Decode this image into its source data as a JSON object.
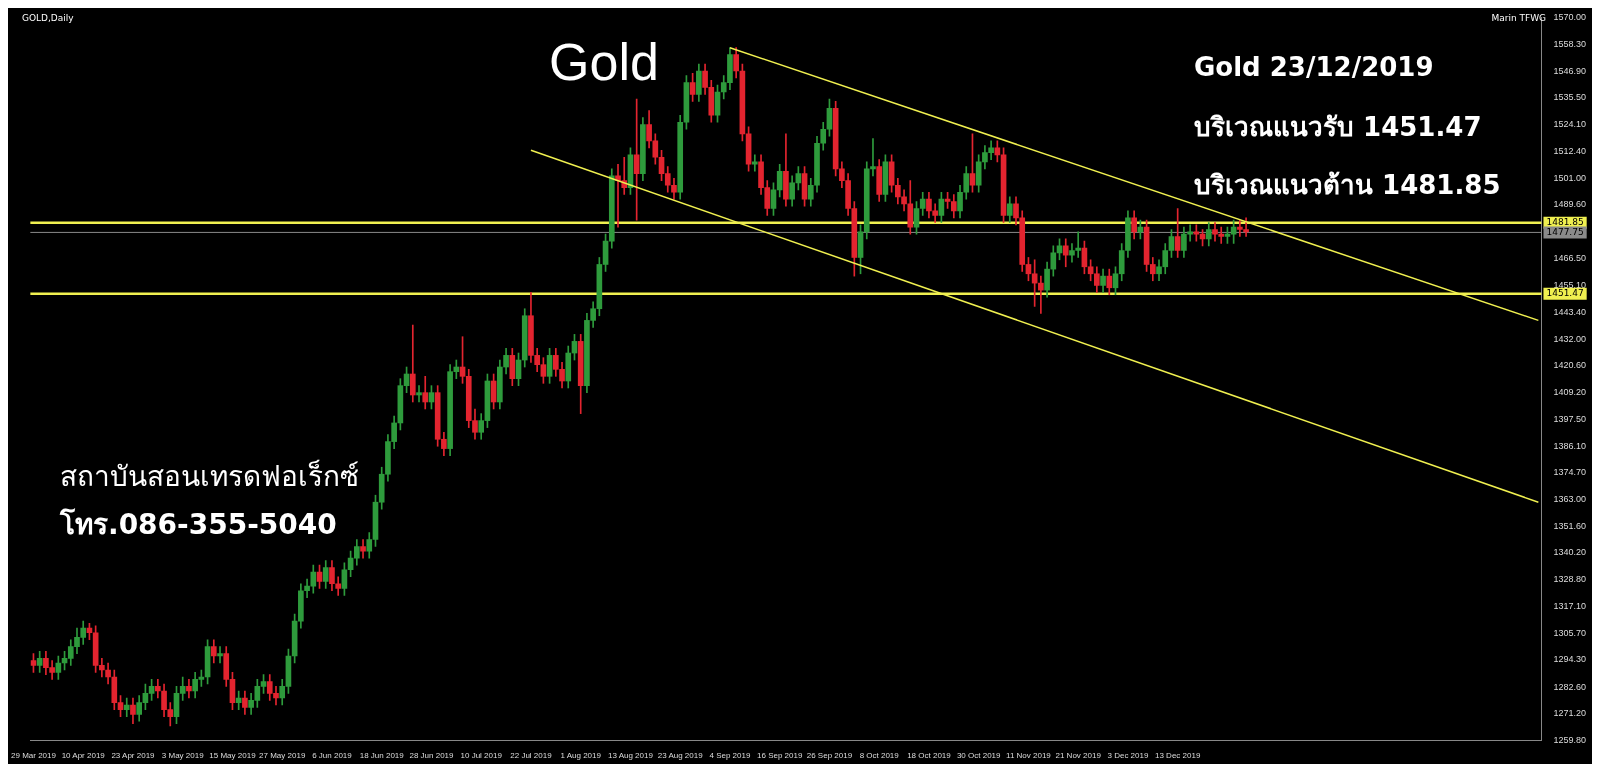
{
  "chart_data": {
    "type": "candlestick",
    "title": "Gold",
    "subtitle": "GOLD,Daily",
    "categories": [
      "29 Mar 2019",
      null,
      null,
      null,
      null,
      null,
      null,
      null,
      "10 Apr 2019",
      null,
      null,
      null,
      null,
      null,
      null,
      null,
      "23 Apr 2019",
      null,
      null,
      null,
      null,
      null,
      null,
      null,
      "3 May 2019",
      null,
      null,
      null,
      null,
      null,
      null,
      null,
      "15 May 2019",
      null,
      null,
      null,
      null,
      null,
      null,
      null,
      "27 May 2019",
      null,
      null,
      null,
      null,
      null,
      null,
      null,
      "6 Jun 2019",
      null,
      null,
      null,
      null,
      null,
      null,
      null,
      "18 Jun 2019",
      null,
      null,
      null,
      null,
      null,
      null,
      null,
      "28 Jun 2019",
      null,
      null,
      null,
      null,
      null,
      null,
      null,
      "10 Jul 2019",
      null,
      null,
      null,
      null,
      null,
      null,
      null,
      "22 Jul 2019",
      null,
      null,
      null,
      null,
      null,
      null,
      null,
      "1 Aug 2019",
      null,
      null,
      null,
      null,
      null,
      null,
      null,
      "13 Aug 2019",
      null,
      null,
      null,
      null,
      null,
      null,
      null,
      "23 Aug 2019",
      null,
      null,
      null,
      null,
      null,
      null,
      null,
      "4 Sep 2019",
      null,
      null,
      null,
      null,
      null,
      null,
      null,
      "16 Sep 2019",
      null,
      null,
      null,
      null,
      null,
      null,
      null,
      "26 Sep 2019",
      null,
      null,
      null,
      null,
      null,
      null,
      null,
      "8 Oct 2019",
      null,
      null,
      null,
      null,
      null,
      null,
      null,
      "18 Oct 2019",
      null,
      null,
      null,
      null,
      null,
      null,
      null,
      "30 Oct 2019",
      null,
      null,
      null,
      null,
      null,
      null,
      null,
      "11 Nov 2019",
      null,
      null,
      null,
      null,
      null,
      null,
      null,
      "21 Nov 2019",
      null,
      null,
      null,
      null,
      null,
      null,
      null,
      "3 Dec 2019",
      null,
      null,
      null,
      null,
      null,
      null,
      null,
      "13 Dec 2019",
      null,
      null,
      null,
      null,
      null,
      null,
      null,
      null,
      null,
      null,
      null,
      null,
      null,
      null,
      null,
      null,
      null,
      null,
      null,
      null,
      null,
      null,
      null,
      null,
      null,
      null,
      null,
      null,
      null,
      null,
      null,
      null,
      null,
      null,
      null,
      null,
      null,
      null,
      null,
      null,
      null,
      null,
      null,
      null,
      null,
      null,
      null,
      null,
      null,
      null,
      null,
      null,
      null,
      null,
      null,
      null,
      null,
      null
    ],
    "ohlc": [
      [
        1294,
        1297,
        1289,
        1292
      ],
      [
        1292,
        1298,
        1289,
        1295
      ],
      [
        1295,
        1298,
        1288,
        1291
      ],
      [
        1291,
        1294,
        1286,
        1289
      ],
      [
        1289,
        1296,
        1286,
        1293
      ],
      [
        1293,
        1298,
        1290,
        1295
      ],
      [
        1295,
        1303,
        1292,
        1300
      ],
      [
        1300,
        1308,
        1297,
        1304
      ],
      [
        1304,
        1311,
        1301,
        1308
      ],
      [
        1308,
        1310,
        1303,
        1306
      ],
      [
        1306,
        1309,
        1289,
        1292
      ],
      [
        1292,
        1295,
        1287,
        1290
      ],
      [
        1290,
        1293,
        1284,
        1287
      ],
      [
        1287,
        1290,
        1273,
        1276
      ],
      [
        1276,
        1279,
        1270,
        1273
      ],
      [
        1273,
        1278,
        1270,
        1275
      ],
      [
        1275,
        1278,
        1267,
        1271
      ],
      [
        1271,
        1279,
        1268,
        1276
      ],
      [
        1276,
        1284,
        1273,
        1280
      ],
      [
        1280,
        1286,
        1277,
        1283
      ],
      [
        1283,
        1286,
        1278,
        1281
      ],
      [
        1281,
        1284,
        1270,
        1273
      ],
      [
        1273,
        1276,
        1266,
        1270
      ],
      [
        1270,
        1283,
        1267,
        1280
      ],
      [
        1280,
        1287,
        1277,
        1283
      ],
      [
        1283,
        1286,
        1278,
        1281
      ],
      [
        1281,
        1289,
        1278,
        1286
      ],
      [
        1286,
        1290,
        1283,
        1287
      ],
      [
        1287,
        1303,
        1284,
        1300
      ],
      [
        1300,
        1303,
        1293,
        1296
      ],
      [
        1296,
        1300,
        1293,
        1297
      ],
      [
        1297,
        1300,
        1283,
        1286
      ],
      [
        1286,
        1289,
        1273,
        1276
      ],
      [
        1276,
        1281,
        1273,
        1278
      ],
      [
        1278,
        1281,
        1271,
        1274
      ],
      [
        1274,
        1280,
        1271,
        1277
      ],
      [
        1277,
        1286,
        1274,
        1283
      ],
      [
        1283,
        1288,
        1280,
        1285
      ],
      [
        1285,
        1288,
        1277,
        1280
      ],
      [
        1280,
        1283,
        1275,
        1278
      ],
      [
        1278,
        1286,
        1275,
        1283
      ],
      [
        1283,
        1299,
        1280,
        1296
      ],
      [
        1296,
        1314,
        1293,
        1311
      ],
      [
        1311,
        1327,
        1308,
        1324
      ],
      [
        1324,
        1329,
        1321,
        1326
      ],
      [
        1326,
        1335,
        1323,
        1332
      ],
      [
        1332,
        1335,
        1325,
        1328
      ],
      [
        1328,
        1337,
        1325,
        1334
      ],
      [
        1334,
        1337,
        1324,
        1327
      ],
      [
        1327,
        1330,
        1322,
        1325
      ],
      [
        1325,
        1336,
        1322,
        1333
      ],
      [
        1333,
        1341,
        1330,
        1338
      ],
      [
        1338,
        1346,
        1335,
        1343
      ],
      [
        1343,
        1346,
        1338,
        1341
      ],
      [
        1341,
        1349,
        1338,
        1346
      ],
      [
        1346,
        1365,
        1343,
        1362
      ],
      [
        1362,
        1377,
        1359,
        1374
      ],
      [
        1374,
        1391,
        1371,
        1388
      ],
      [
        1388,
        1399,
        1385,
        1396
      ],
      [
        1396,
        1415,
        1393,
        1412
      ],
      [
        1412,
        1420,
        1409,
        1417
      ],
      [
        1417,
        1438,
        1405,
        1408
      ],
      [
        1408,
        1412,
        1405,
        1409
      ],
      [
        1409,
        1416,
        1402,
        1405
      ],
      [
        1405,
        1412,
        1402,
        1409
      ],
      [
        1409,
        1412,
        1386,
        1389
      ],
      [
        1389,
        1392,
        1382,
        1385
      ],
      [
        1385,
        1421,
        1382,
        1418
      ],
      [
        1418,
        1423,
        1415,
        1420
      ],
      [
        1420,
        1433,
        1413,
        1416
      ],
      [
        1416,
        1419,
        1394,
        1397
      ],
      [
        1397,
        1402,
        1389,
        1392
      ],
      [
        1392,
        1400,
        1389,
        1397
      ],
      [
        1397,
        1417,
        1394,
        1414
      ],
      [
        1414,
        1417,
        1402,
        1405
      ],
      [
        1405,
        1423,
        1402,
        1420
      ],
      [
        1420,
        1428,
        1417,
        1425
      ],
      [
        1425,
        1428,
        1412,
        1415
      ],
      [
        1415,
        1426,
        1412,
        1423
      ],
      [
        1423,
        1445,
        1420,
        1442
      ],
      [
        1442,
        1452,
        1422,
        1425
      ],
      [
        1425,
        1428,
        1418,
        1421
      ],
      [
        1421,
        1424,
        1413,
        1416
      ],
      [
        1416,
        1428,
        1413,
        1425
      ],
      [
        1425,
        1428,
        1416,
        1419
      ],
      [
        1419,
        1422,
        1411,
        1414
      ],
      [
        1414,
        1429,
        1411,
        1426
      ],
      [
        1426,
        1434,
        1423,
        1431
      ],
      [
        1431,
        1434,
        1400,
        1412
      ],
      [
        1412,
        1443,
        1409,
        1440
      ],
      [
        1440,
        1448,
        1437,
        1445
      ],
      [
        1445,
        1467,
        1442,
        1464
      ],
      [
        1464,
        1477,
        1461,
        1474
      ],
      [
        1474,
        1505,
        1471,
        1502
      ],
      [
        1502,
        1507,
        1480,
        1500
      ],
      [
        1500,
        1510,
        1494,
        1497
      ],
      [
        1497,
        1514,
        1494,
        1511
      ],
      [
        1511,
        1535,
        1483,
        1503
      ],
      [
        1503,
        1527,
        1500,
        1524
      ],
      [
        1524,
        1530,
        1514,
        1517
      ],
      [
        1517,
        1520,
        1507,
        1510
      ],
      [
        1510,
        1513,
        1500,
        1503
      ],
      [
        1503,
        1506,
        1495,
        1498
      ],
      [
        1498,
        1501,
        1492,
        1495
      ],
      [
        1495,
        1528,
        1492,
        1525
      ],
      [
        1525,
        1545,
        1522,
        1542
      ],
      [
        1542,
        1546,
        1534,
        1537
      ],
      [
        1537,
        1550,
        1534,
        1547
      ],
      [
        1547,
        1550,
        1537,
        1540
      ],
      [
        1540,
        1543,
        1525,
        1528
      ],
      [
        1528,
        1541,
        1525,
        1538
      ],
      [
        1538,
        1545,
        1535,
        1542
      ],
      [
        1542,
        1557,
        1539,
        1554
      ],
      [
        1554,
        1557,
        1544,
        1547
      ],
      [
        1547,
        1550,
        1517,
        1520
      ],
      [
        1520,
        1523,
        1504,
        1507
      ],
      [
        1507,
        1511,
        1504,
        1508
      ],
      [
        1508,
        1511,
        1494,
        1497
      ],
      [
        1497,
        1500,
        1485,
        1488
      ],
      [
        1488,
        1499,
        1485,
        1496
      ],
      [
        1496,
        1507,
        1493,
        1504
      ],
      [
        1504,
        1520,
        1489,
        1492
      ],
      [
        1492,
        1502,
        1489,
        1499
      ],
      [
        1499,
        1506,
        1496,
        1503
      ],
      [
        1503,
        1506,
        1489,
        1492
      ],
      [
        1492,
        1501,
        1489,
        1498
      ],
      [
        1498,
        1519,
        1495,
        1516
      ],
      [
        1516,
        1525,
        1513,
        1522
      ],
      [
        1522,
        1535,
        1519,
        1531
      ],
      [
        1531,
        1534,
        1502,
        1505
      ],
      [
        1505,
        1508,
        1497,
        1500
      ],
      [
        1500,
        1503,
        1485,
        1488
      ],
      [
        1488,
        1491,
        1459,
        1467
      ],
      [
        1467,
        1481,
        1460,
        1478
      ],
      [
        1478,
        1508,
        1475,
        1505
      ],
      [
        1505,
        1518,
        1502,
        1506
      ],
      [
        1506,
        1509,
        1491,
        1494
      ],
      [
        1494,
        1511,
        1491,
        1508
      ],
      [
        1508,
        1511,
        1495,
        1498
      ],
      [
        1498,
        1501,
        1490,
        1493
      ],
      [
        1493,
        1496,
        1487,
        1490
      ],
      [
        1490,
        1500,
        1477,
        1480
      ],
      [
        1480,
        1491,
        1477,
        1488
      ],
      [
        1488,
        1495,
        1485,
        1492
      ],
      [
        1492,
        1495,
        1484,
        1487
      ],
      [
        1487,
        1490,
        1482,
        1485
      ],
      [
        1485,
        1495,
        1482,
        1492
      ],
      [
        1492,
        1495,
        1488,
        1491
      ],
      [
        1491,
        1494,
        1484,
        1487
      ],
      [
        1487,
        1498,
        1484,
        1495
      ],
      [
        1495,
        1506,
        1492,
        1503
      ],
      [
        1503,
        1520,
        1495,
        1498
      ],
      [
        1498,
        1511,
        1495,
        1508
      ],
      [
        1508,
        1515,
        1505,
        1512
      ],
      [
        1512,
        1517,
        1509,
        1514
      ],
      [
        1514,
        1517,
        1508,
        1511
      ],
      [
        1511,
        1514,
        1482,
        1485
      ],
      [
        1485,
        1493,
        1482,
        1490
      ],
      [
        1490,
        1493,
        1481,
        1484
      ],
      [
        1484,
        1487,
        1461,
        1464
      ],
      [
        1464,
        1467,
        1457,
        1460
      ],
      [
        1460,
        1466,
        1446,
        1456
      ],
      [
        1456,
        1459,
        1443,
        1453
      ],
      [
        1453,
        1465,
        1450,
        1462
      ],
      [
        1462,
        1472,
        1459,
        1469
      ],
      [
        1469,
        1475,
        1466,
        1472
      ],
      [
        1472,
        1475,
        1463,
        1468
      ],
      [
        1468,
        1473,
        1465,
        1470
      ],
      [
        1470,
        1478,
        1467,
        1471
      ],
      [
        1471,
        1474,
        1460,
        1463
      ],
      [
        1463,
        1466,
        1457,
        1460
      ],
      [
        1460,
        1463,
        1452,
        1455
      ],
      [
        1455,
        1462,
        1452,
        1459
      ],
      [
        1459,
        1462,
        1451,
        1454
      ],
      [
        1454,
        1463,
        1451,
        1460
      ],
      [
        1460,
        1473,
        1457,
        1470
      ],
      [
        1470,
        1487,
        1467,
        1484
      ],
      [
        1484,
        1487,
        1475,
        1478
      ],
      [
        1478,
        1483,
        1475,
        1480
      ],
      [
        1480,
        1483,
        1461,
        1464
      ],
      [
        1464,
        1467,
        1457,
        1460
      ],
      [
        1460,
        1466,
        1457,
        1463
      ],
      [
        1463,
        1473,
        1460,
        1470
      ],
      [
        1470,
        1479,
        1467,
        1476
      ],
      [
        1476,
        1488,
        1467,
        1470
      ],
      [
        1470,
        1480,
        1467,
        1477
      ],
      [
        1477,
        1481,
        1474,
        1478
      ],
      [
        1478,
        1481,
        1474,
        1477
      ],
      [
        1477,
        1479,
        1472,
        1475
      ],
      [
        1475,
        1482,
        1472,
        1479
      ],
      [
        1479,
        1482,
        1474,
        1477
      ],
      [
        1477,
        1480,
        1473,
        1476
      ],
      [
        1476,
        1480,
        1473,
        1477
      ],
      [
        1477,
        1483,
        1473,
        1480
      ],
      [
        1480,
        1483,
        1476,
        1479
      ],
      [
        1479,
        1484,
        1476,
        1478
      ],
      null,
      null,
      null,
      null,
      null,
      null,
      null,
      null,
      null,
      null,
      null,
      null,
      null,
      null,
      null,
      null,
      null,
      null,
      null,
      null,
      null,
      null,
      null,
      null,
      null,
      null,
      null,
      null,
      null,
      null,
      null,
      null,
      null,
      null,
      null,
      null,
      null,
      null,
      null,
      null,
      null,
      null,
      null,
      null,
      null,
      null,
      null
    ],
    "colors": [
      "#e3242f",
      "#2e9b3c",
      "#e3242f",
      "#e3242f",
      "#2e9b3c",
      "#2e9b3c",
      "#2e9b3c",
      "#2e9b3c",
      "#2e9b3c",
      "#e3242f",
      "#e3242f",
      "#e3242f",
      "#e3242f",
      "#e3242f",
      "#e3242f",
      "#2e9b3c",
      "#e3242f",
      "#2e9b3c",
      "#2e9b3c",
      "#2e9b3c",
      "#e3242f",
      "#e3242f",
      "#e3242f",
      "#2e9b3c",
      "#2e9b3c",
      "#e3242f",
      "#2e9b3c",
      "#2e9b3c",
      "#2e9b3c",
      "#e3242f",
      "#2e9b3c",
      "#e3242f",
      "#e3242f",
      "#2e9b3c",
      "#e3242f",
      "#2e9b3c",
      "#2e9b3c",
      "#2e9b3c",
      "#e3242f",
      "#e3242f",
      "#2e9b3c",
      "#2e9b3c",
      "#2e9b3c",
      "#2e9b3c",
      "#2e9b3c",
      "#2e9b3c",
      "#e3242f",
      "#2e9b3c",
      "#e3242f",
      "#e3242f",
      "#2e9b3c",
      "#2e9b3c",
      "#2e9b3c",
      "#e3242f",
      "#2e9b3c",
      "#2e9b3c",
      "#2e9b3c",
      "#2e9b3c",
      "#2e9b3c",
      "#2e9b3c",
      "#2e9b3c",
      "#e3242f",
      "#2e9b3c",
      "#e3242f",
      "#2e9b3c",
      "#e3242f",
      "#e3242f",
      "#2e9b3c",
      "#2e9b3c",
      "#e3242f",
      "#e3242f",
      "#e3242f",
      "#2e9b3c",
      "#2e9b3c",
      "#e3242f",
      "#2e9b3c",
      "#2e9b3c",
      "#e3242f",
      "#2e9b3c",
      "#2e9b3c",
      "#e3242f",
      "#e3242f",
      "#e3242f",
      "#2e9b3c",
      "#e3242f",
      "#e3242f",
      "#2e9b3c",
      "#2e9b3c",
      "#e3242f",
      "#2e9b3c",
      "#2e9b3c",
      "#2e9b3c",
      "#2e9b3c",
      "#2e9b3c",
      "#e3242f",
      "#e3242f",
      "#2e9b3c",
      "#e3242f",
      "#2e9b3c",
      "#e3242f",
      "#e3242f",
      "#e3242f",
      "#e3242f",
      "#e3242f",
      "#2e9b3c",
      "#2e9b3c",
      "#e3242f",
      "#2e9b3c",
      "#e3242f",
      "#e3242f",
      "#2e9b3c",
      "#2e9b3c",
      "#2e9b3c",
      "#e3242f",
      "#e3242f",
      "#e3242f",
      "#2e9b3c",
      "#e3242f",
      "#e3242f",
      "#2e9b3c",
      "#2e9b3c",
      "#e3242f",
      "#2e9b3c",
      "#2e9b3c",
      "#e3242f",
      "#2e9b3c",
      "#2e9b3c",
      "#2e9b3c",
      "#2e9b3c",
      "#e3242f",
      "#e3242f",
      "#e3242f",
      "#e3242f",
      "#2e9b3c",
      "#2e9b3c",
      "#2e9b3c",
      "#e3242f",
      "#2e9b3c",
      "#e3242f",
      "#e3242f",
      "#e3242f",
      "#e3242f",
      "#2e9b3c",
      "#2e9b3c",
      "#e3242f",
      "#e3242f",
      "#2e9b3c",
      "#e3242f",
      "#e3242f",
      "#2e9b3c",
      "#2e9b3c",
      "#e3242f",
      "#2e9b3c",
      "#2e9b3c",
      "#2e9b3c",
      "#e3242f",
      "#e3242f",
      "#2e9b3c",
      "#e3242f",
      "#e3242f",
      "#e3242f",
      "#e3242f",
      "#e3242f",
      "#2e9b3c",
      "#2e9b3c",
      "#2e9b3c",
      "#e3242f",
      "#2e9b3c",
      "#2e9b3c",
      "#e3242f",
      "#e3242f",
      "#e3242f",
      "#2e9b3c",
      "#e3242f",
      "#2e9b3c",
      "#2e9b3c",
      "#2e9b3c",
      "#e3242f",
      "#2e9b3c",
      "#e3242f",
      "#e3242f",
      "#2e9b3c",
      "#2e9b3c",
      "#2e9b3c",
      "#e3242f",
      "#2e9b3c",
      "#2e9b3c",
      "#e3242f",
      "#e3242f",
      "#2e9b3c",
      "#e3242f",
      "#e3242f",
      "#2e9b3c",
      "#2e9b3c",
      "#e3242f",
      "#e3242f",
      null,
      null,
      null,
      null,
      null,
      null,
      null,
      null,
      null,
      null,
      null,
      null,
      null,
      null,
      null,
      null,
      null,
      null,
      null,
      null,
      null,
      null,
      null,
      null,
      null,
      null,
      null,
      null,
      null,
      null,
      null,
      null,
      null,
      null,
      null,
      null,
      null,
      null,
      null,
      null,
      null,
      null,
      null,
      null,
      null,
      null,
      null
    ],
    "series": [
      {
        "type": "line",
        "color": "#f0f050",
        "values": [
          null,
          null,
          null,
          null,
          null,
          null,
          null,
          null,
          null,
          null,
          null,
          null,
          null,
          null,
          null,
          null,
          null,
          null,
          null,
          null,
          null,
          null,
          null,
          null,
          null,
          null,
          null,
          null,
          null,
          null,
          null,
          null,
          null,
          null,
          null,
          null,
          null,
          null,
          null,
          null,
          null,
          null,
          null,
          null,
          null,
          null,
          null,
          null,
          null,
          null,
          null,
          null,
          null,
          null,
          null,
          null,
          null,
          null,
          null,
          null,
          null,
          null,
          null,
          null,
          null,
          null,
          null,
          null,
          null,
          null,
          null,
          null,
          null,
          null,
          null,
          null,
          null,
          null,
          null,
          null,
          1513,
          null,
          null,
          null,
          null,
          null,
          null,
          null,
          null,
          null,
          null,
          null,
          null,
          null,
          null,
          null,
          null,
          null,
          null,
          null,
          null,
          null,
          null,
          null,
          null,
          null,
          null,
          null,
          null,
          null,
          null,
          null,
          null,
          null,
          null,
          null,
          null,
          null,
          null,
          null,
          null,
          null,
          null,
          null,
          null,
          null,
          null,
          null,
          null,
          null,
          null,
          null,
          null,
          null,
          null,
          null,
          null,
          null,
          null,
          null,
          null,
          null,
          null,
          null,
          null,
          null,
          null,
          null,
          null,
          null,
          null,
          null,
          null,
          null,
          null,
          null,
          null,
          null,
          null,
          null,
          null,
          null,
          null,
          null,
          null,
          null,
          null,
          null,
          null,
          null,
          null,
          null,
          null,
          null,
          null,
          null,
          null,
          null,
          null,
          null,
          null,
          null,
          null,
          null,
          null,
          null,
          null,
          null,
          null,
          null,
          null,
          null,
          null,
          null,
          null,
          null,
          null,
          null,
          null,
          null,
          null,
          null,
          null,
          null,
          null,
          null,
          null,
          null,
          null,
          null,
          null,
          null,
          null,
          null,
          null,
          null,
          null,
          null,
          null,
          null,
          null,
          null,
          null,
          null,
          null,
          null,
          null,
          null,
          null,
          null,
          null,
          null,
          null,
          null,
          null,
          null,
          null,
          null,
          null,
          null,
          null,
          null,
          1362
        ]
      },
      {
        "type": "line",
        "color": "#f0f050",
        "values": [
          null,
          null,
          null,
          null,
          null,
          null,
          null,
          null,
          null,
          null,
          null,
          null,
          null,
          null,
          null,
          null,
          null,
          null,
          null,
          null,
          null,
          null,
          null,
          null,
          null,
          null,
          null,
          null,
          null,
          null,
          null,
          null,
          null,
          null,
          null,
          null,
          null,
          null,
          null,
          null,
          null,
          null,
          null,
          null,
          null,
          null,
          null,
          null,
          null,
          null,
          null,
          null,
          null,
          null,
          null,
          null,
          null,
          null,
          null,
          null,
          null,
          null,
          null,
          null,
          null,
          null,
          null,
          null,
          null,
          null,
          null,
          null,
          null,
          null,
          null,
          null,
          null,
          null,
          null,
          null,
          null,
          null,
          null,
          null,
          null,
          null,
          null,
          null,
          null,
          null,
          null,
          null,
          null,
          null,
          null,
          null,
          null,
          null,
          null,
          null,
          null,
          null,
          null,
          null,
          null,
          null,
          null,
          null,
          null,
          null,
          null,
          null,
          1557,
          null,
          null,
          null,
          null,
          null,
          null,
          null,
          null,
          null,
          null,
          null,
          null,
          null,
          null,
          null,
          null,
          null,
          null,
          null,
          null,
          null,
          null,
          null,
          null,
          null,
          null,
          null,
          null,
          null,
          null,
          null,
          null,
          null,
          null,
          null,
          null,
          null,
          null,
          null,
          null,
          null,
          null,
          null,
          null,
          null,
          null,
          null,
          null,
          null,
          null,
          null,
          null,
          null,
          null,
          null,
          null,
          null,
          null,
          null,
          null,
          null,
          null,
          null,
          null,
          null,
          null,
          null,
          null,
          null,
          null,
          null,
          null,
          null,
          null,
          null,
          null,
          null,
          null,
          null,
          null,
          null,
          null,
          null,
          null,
          null,
          null,
          null,
          null,
          null,
          null,
          null,
          null,
          null,
          null,
          null,
          null,
          null,
          null,
          null,
          null,
          null,
          null,
          null,
          null,
          null,
          null,
          null,
          null,
          null,
          null,
          null,
          null,
          null,
          null,
          null,
          null,
          null,
          null,
          null,
          null,
          null,
          null,
          null,
          null,
          null,
          null,
          null,
          null,
          null,
          1440
        ]
      }
    ],
    "ylim": [
      1259.8,
      1570
    ],
    "yticks": [
      {
        "value": 1570,
        "label": "1570.00"
      },
      {
        "value": 1558.3,
        "label": "1558.30"
      },
      {
        "value": 1546.9,
        "label": "1546.90"
      },
      {
        "value": 1535.5,
        "label": "1535.50"
      },
      {
        "value": 1524.1,
        "label": "1524.10"
      },
      {
        "value": 1512.4,
        "label": "1512.40"
      },
      {
        "value": 1501,
        "label": "1501.00"
      },
      {
        "value": 1489.6,
        "label": "1489.60"
      },
      {
        "value": 1466.5,
        "label": "1466.50"
      },
      {
        "value": 1455.1,
        "label": "1455.10"
      },
      {
        "value": 1443.4,
        "label": "1443.40"
      },
      {
        "value": 1432,
        "label": "1432.00"
      },
      {
        "value": 1420.6,
        "label": "1420.60"
      },
      {
        "value": 1409.2,
        "label": "1409.20"
      },
      {
        "value": 1397.5,
        "label": "1397.50"
      },
      {
        "value": 1386.1,
        "label": "1386.10"
      },
      {
        "value": 1374.7,
        "label": "1374.70"
      },
      {
        "value": 1363,
        "label": "1363.00"
      },
      {
        "value": 1351.6,
        "label": "1351.60"
      },
      {
        "value": 1340.2,
        "label": "1340.20"
      },
      {
        "value": 1328.8,
        "label": "1328.80"
      },
      {
        "value": 1317.1,
        "label": "1317.10"
      },
      {
        "value": 1305.7,
        "label": "1305.70"
      },
      {
        "value": 1294.3,
        "label": "1294.30"
      },
      {
        "value": 1282.6,
        "label": "1282.60"
      },
      {
        "value": 1271.2,
        "label": "1271.20"
      },
      {
        "value": 1259.8,
        "label": "1259.80"
      }
    ],
    "ref_lines": [
      {
        "axis": "y",
        "value": 1481.85,
        "label": "1481.85",
        "color": "#f0f050"
      },
      {
        "axis": "y",
        "value": 1477.75,
        "label": "1477.75",
        "color": "#8a8a8a"
      },
      {
        "axis": "y",
        "value": 1451.47,
        "label": "1451.47",
        "color": "#f0f050"
      }
    ],
    "annotations": [
      "Gold 23/12/2019",
      "บริเวณแนวรับ 1451.47",
      "บริเวณแนวต้าน 1481.85",
      "สถาบันสอนเทรดฟอเร็กซ์",
      "โทร.086-355-5040",
      "Marin TFWG"
    ],
    "grid": false,
    "legend": false
  }
}
